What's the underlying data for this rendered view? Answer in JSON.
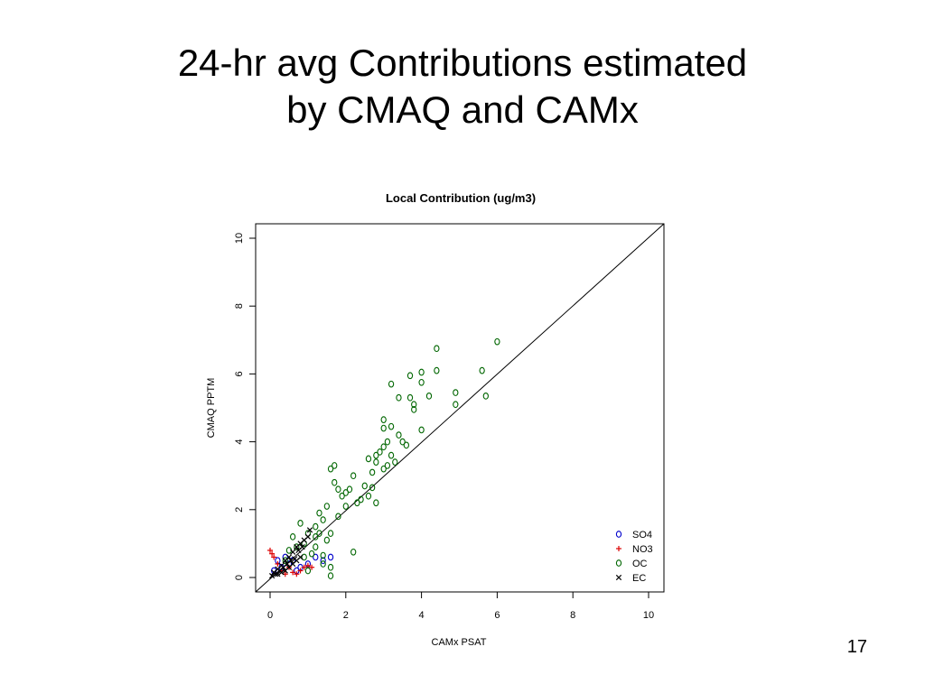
{
  "slide": {
    "title_line1": "24-hr avg Contributions estimated",
    "title_line2": "by CMAQ and CAMx",
    "page_number": "17"
  },
  "chart_data": {
    "type": "scatter",
    "title": "Local Contribution (ug/m3)",
    "xlabel": "CAMx PSAT",
    "ylabel": "CMAQ PPTM",
    "xlim": [
      0,
      10
    ],
    "ylim": [
      0,
      10
    ],
    "x_ticks": [
      "0",
      "2",
      "4",
      "6",
      "8",
      "10"
    ],
    "y_ticks": [
      "0",
      "2",
      "4",
      "6",
      "8",
      "10"
    ],
    "reference_line": "y = x",
    "grid": false,
    "legend_position": "bottom-right",
    "series": [
      {
        "name": "SO4",
        "marker": "o",
        "color": "#0000cc",
        "points": [
          [
            0.1,
            0.2
          ],
          [
            0.2,
            0.5
          ],
          [
            0.3,
            0.3
          ],
          [
            0.4,
            0.6
          ],
          [
            0.5,
            0.4
          ],
          [
            0.6,
            0.5
          ],
          [
            0.7,
            0.2
          ],
          [
            0.8,
            0.3
          ],
          [
            1.0,
            0.4
          ],
          [
            1.2,
            0.6
          ],
          [
            1.4,
            0.5
          ],
          [
            1.6,
            0.6
          ]
        ]
      },
      {
        "name": "NO3",
        "marker": "+",
        "color": "#dd0000",
        "points": [
          [
            0.0,
            0.8
          ],
          [
            0.05,
            0.7
          ],
          [
            0.1,
            0.6
          ],
          [
            0.2,
            0.4
          ],
          [
            0.3,
            0.2
          ],
          [
            0.4,
            0.1
          ],
          [
            0.5,
            0.3
          ],
          [
            0.7,
            0.1
          ],
          [
            0.8,
            0.2
          ],
          [
            0.9,
            0.3
          ],
          [
            1.0,
            0.35
          ],
          [
            1.1,
            0.3
          ],
          [
            0.6,
            0.15
          ]
        ]
      },
      {
        "name": "OC",
        "marker": "o",
        "color": "#006600",
        "points": [
          [
            6.0,
            6.95
          ],
          [
            4.4,
            6.75
          ],
          [
            5.6,
            6.1
          ],
          [
            4.4,
            6.1
          ],
          [
            4.0,
            6.05
          ],
          [
            3.7,
            5.95
          ],
          [
            4.0,
            5.75
          ],
          [
            3.2,
            5.7
          ],
          [
            5.7,
            5.35
          ],
          [
            3.4,
            5.3
          ],
          [
            3.7,
            5.3
          ],
          [
            4.2,
            5.35
          ],
          [
            4.9,
            5.45
          ],
          [
            3.8,
            5.1
          ],
          [
            3.8,
            4.95
          ],
          [
            4.9,
            5.1
          ],
          [
            3.0,
            4.65
          ],
          [
            3.0,
            4.4
          ],
          [
            3.2,
            4.45
          ],
          [
            3.4,
            4.2
          ],
          [
            4.0,
            4.35
          ],
          [
            3.5,
            4.0
          ],
          [
            3.6,
            3.9
          ],
          [
            3.1,
            4.0
          ],
          [
            2.9,
            3.7
          ],
          [
            3.0,
            3.85
          ],
          [
            2.8,
            3.6
          ],
          [
            2.8,
            3.4
          ],
          [
            2.6,
            3.5
          ],
          [
            3.2,
            3.6
          ],
          [
            3.3,
            3.4
          ],
          [
            2.7,
            3.1
          ],
          [
            3.0,
            3.2
          ],
          [
            2.2,
            3.0
          ],
          [
            1.7,
            3.3
          ],
          [
            1.6,
            3.2
          ],
          [
            1.8,
            2.6
          ],
          [
            1.7,
            2.8
          ],
          [
            2.1,
            2.6
          ],
          [
            2.0,
            2.5
          ],
          [
            2.5,
            2.7
          ],
          [
            2.7,
            2.65
          ],
          [
            2.4,
            2.3
          ],
          [
            2.3,
            2.2
          ],
          [
            2.0,
            2.1
          ],
          [
            2.8,
            2.2
          ],
          [
            1.5,
            2.1
          ],
          [
            1.3,
            1.9
          ],
          [
            1.4,
            1.7
          ],
          [
            1.2,
            1.5
          ],
          [
            1.3,
            1.3
          ],
          [
            1.6,
            1.3
          ],
          [
            1.5,
            1.1
          ],
          [
            1.2,
            0.9
          ],
          [
            2.2,
            0.75
          ],
          [
            1.4,
            0.65
          ],
          [
            1.6,
            0.3
          ],
          [
            1.6,
            0.05
          ],
          [
            1.4,
            0.4
          ],
          [
            1.1,
            0.7
          ],
          [
            0.9,
            1.0
          ],
          [
            1.0,
            1.3
          ],
          [
            0.8,
            1.6
          ],
          [
            0.6,
            1.2
          ],
          [
            0.7,
            0.9
          ],
          [
            0.9,
            0.6
          ],
          [
            1.0,
            0.2
          ],
          [
            0.5,
            0.8
          ],
          [
            0.4,
            0.5
          ],
          [
            1.2,
            1.2
          ],
          [
            1.8,
            1.8
          ],
          [
            1.9,
            2.4
          ],
          [
            2.6,
            2.4
          ],
          [
            3.1,
            3.3
          ]
        ]
      },
      {
        "name": "EC",
        "marker": "x",
        "color": "#000000",
        "points": [
          [
            0.05,
            0.05
          ],
          [
            0.1,
            0.15
          ],
          [
            0.15,
            0.1
          ],
          [
            0.2,
            0.25
          ],
          [
            0.25,
            0.2
          ],
          [
            0.3,
            0.35
          ],
          [
            0.35,
            0.3
          ],
          [
            0.4,
            0.5
          ],
          [
            0.45,
            0.4
          ],
          [
            0.5,
            0.6
          ],
          [
            0.55,
            0.5
          ],
          [
            0.6,
            0.75
          ],
          [
            0.65,
            0.55
          ],
          [
            0.7,
            0.9
          ],
          [
            0.75,
            0.8
          ],
          [
            0.8,
            1.0
          ],
          [
            0.85,
            0.9
          ],
          [
            0.9,
            1.1
          ],
          [
            1.0,
            1.2
          ],
          [
            1.05,
            1.4
          ],
          [
            0.5,
            0.3
          ],
          [
            0.3,
            0.15
          ],
          [
            0.2,
            0.1
          ],
          [
            0.6,
            0.4
          ],
          [
            0.7,
            0.5
          ],
          [
            0.4,
            0.2
          ],
          [
            0.8,
            0.6
          ]
        ]
      }
    ]
  }
}
